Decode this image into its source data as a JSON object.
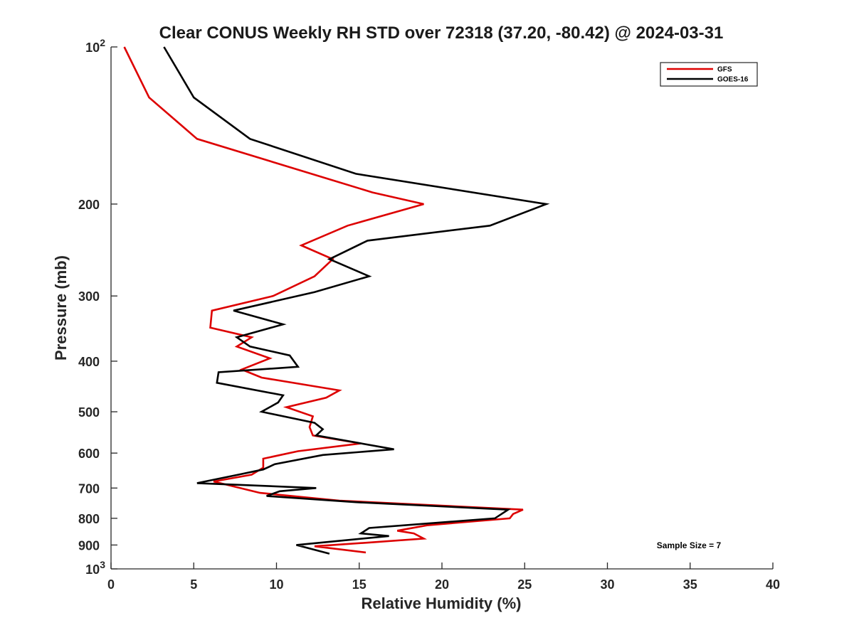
{
  "chart_data": {
    "type": "line",
    "title": "Clear CONUS Weekly RH STD over 72318 (37.20, -80.42) @ 2024-03-31",
    "xlabel": "Relative Humidity (%)",
    "ylabel": "Pressure (mb)",
    "xlim": [
      0,
      40
    ],
    "ylim": [
      100,
      1000
    ],
    "yscale": "log",
    "y_reversed": true,
    "grid": false,
    "legend_position": "top-right",
    "x_ticks": [
      "0",
      "5",
      "10",
      "15",
      "20",
      "25",
      "30",
      "35",
      "40"
    ],
    "y_ticks": [
      {
        "value": 100,
        "base": "10",
        "exp": "2"
      },
      {
        "value": 200,
        "label": "200"
      },
      {
        "value": 300,
        "label": "300"
      },
      {
        "value": 400,
        "label": "400"
      },
      {
        "value": 500,
        "label": "500"
      },
      {
        "value": 600,
        "label": "600"
      },
      {
        "value": 700,
        "label": "700"
      },
      {
        "value": 800,
        "label": "800"
      },
      {
        "value": 900,
        "label": "900"
      },
      {
        "value": 1000,
        "base": "10",
        "exp": "3"
      }
    ],
    "annotation": "Sample Size = 7",
    "series": [
      {
        "name": "GFS",
        "color": "#dd0000",
        "points": [
          [
            0.8,
            100
          ],
          [
            2.3,
            125
          ],
          [
            5.2,
            150
          ],
          [
            15.8,
            190
          ],
          [
            18.9,
            200
          ],
          [
            14.3,
            220
          ],
          [
            11.5,
            240
          ],
          [
            13.4,
            255
          ],
          [
            12.3,
            275
          ],
          [
            9.8,
            300
          ],
          [
            6.1,
            320
          ],
          [
            6.0,
            345
          ],
          [
            8.5,
            360
          ],
          [
            7.6,
            375
          ],
          [
            9.6,
            395
          ],
          [
            7.9,
            415
          ],
          [
            9.1,
            430
          ],
          [
            13.8,
            455
          ],
          [
            13.0,
            470
          ],
          [
            10.6,
            490
          ],
          [
            12.2,
            510
          ],
          [
            12.0,
            535
          ],
          [
            12.2,
            555
          ],
          [
            15.1,
            575
          ],
          [
            11.3,
            595
          ],
          [
            9.2,
            615
          ],
          [
            9.2,
            640
          ],
          [
            8.5,
            660
          ],
          [
            6.2,
            680
          ],
          [
            9.0,
            715
          ],
          [
            13.8,
            740
          ],
          [
            24.9,
            770
          ],
          [
            24.3,
            785
          ],
          [
            24.1,
            800
          ],
          [
            19.1,
            825
          ],
          [
            17.3,
            845
          ],
          [
            18.3,
            855
          ],
          [
            18.9,
            875
          ],
          [
            15.6,
            890
          ],
          [
            12.3,
            905
          ],
          [
            15.4,
            930
          ]
        ]
      },
      {
        "name": "GOES-16",
        "color": "#000000",
        "points": [
          [
            3.2,
            100
          ],
          [
            5.0,
            125
          ],
          [
            8.4,
            150
          ],
          [
            14.8,
            175
          ],
          [
            26.3,
            200
          ],
          [
            22.9,
            220
          ],
          [
            15.5,
            235
          ],
          [
            13.2,
            255
          ],
          [
            15.6,
            275
          ],
          [
            12.3,
            295
          ],
          [
            7.4,
            320
          ],
          [
            10.4,
            340
          ],
          [
            7.6,
            360
          ],
          [
            8.4,
            375
          ],
          [
            10.8,
            390
          ],
          [
            11.3,
            410
          ],
          [
            6.5,
            420
          ],
          [
            6.4,
            440
          ],
          [
            10.4,
            465
          ],
          [
            10.1,
            480
          ],
          [
            9.1,
            500
          ],
          [
            12.3,
            525
          ],
          [
            12.8,
            540
          ],
          [
            12.4,
            555
          ],
          [
            17.1,
            590
          ],
          [
            12.8,
            605
          ],
          [
            9.9,
            630
          ],
          [
            9.2,
            645
          ],
          [
            7.7,
            660
          ],
          [
            5.2,
            685
          ],
          [
            12.4,
            700
          ],
          [
            10.2,
            710
          ],
          [
            9.4,
            725
          ],
          [
            14.8,
            745
          ],
          [
            24.0,
            770
          ],
          [
            23.6,
            785
          ],
          [
            23.2,
            800
          ],
          [
            15.6,
            835
          ],
          [
            15.1,
            855
          ],
          [
            16.8,
            865
          ],
          [
            11.2,
            900
          ],
          [
            13.2,
            935
          ]
        ]
      }
    ]
  }
}
